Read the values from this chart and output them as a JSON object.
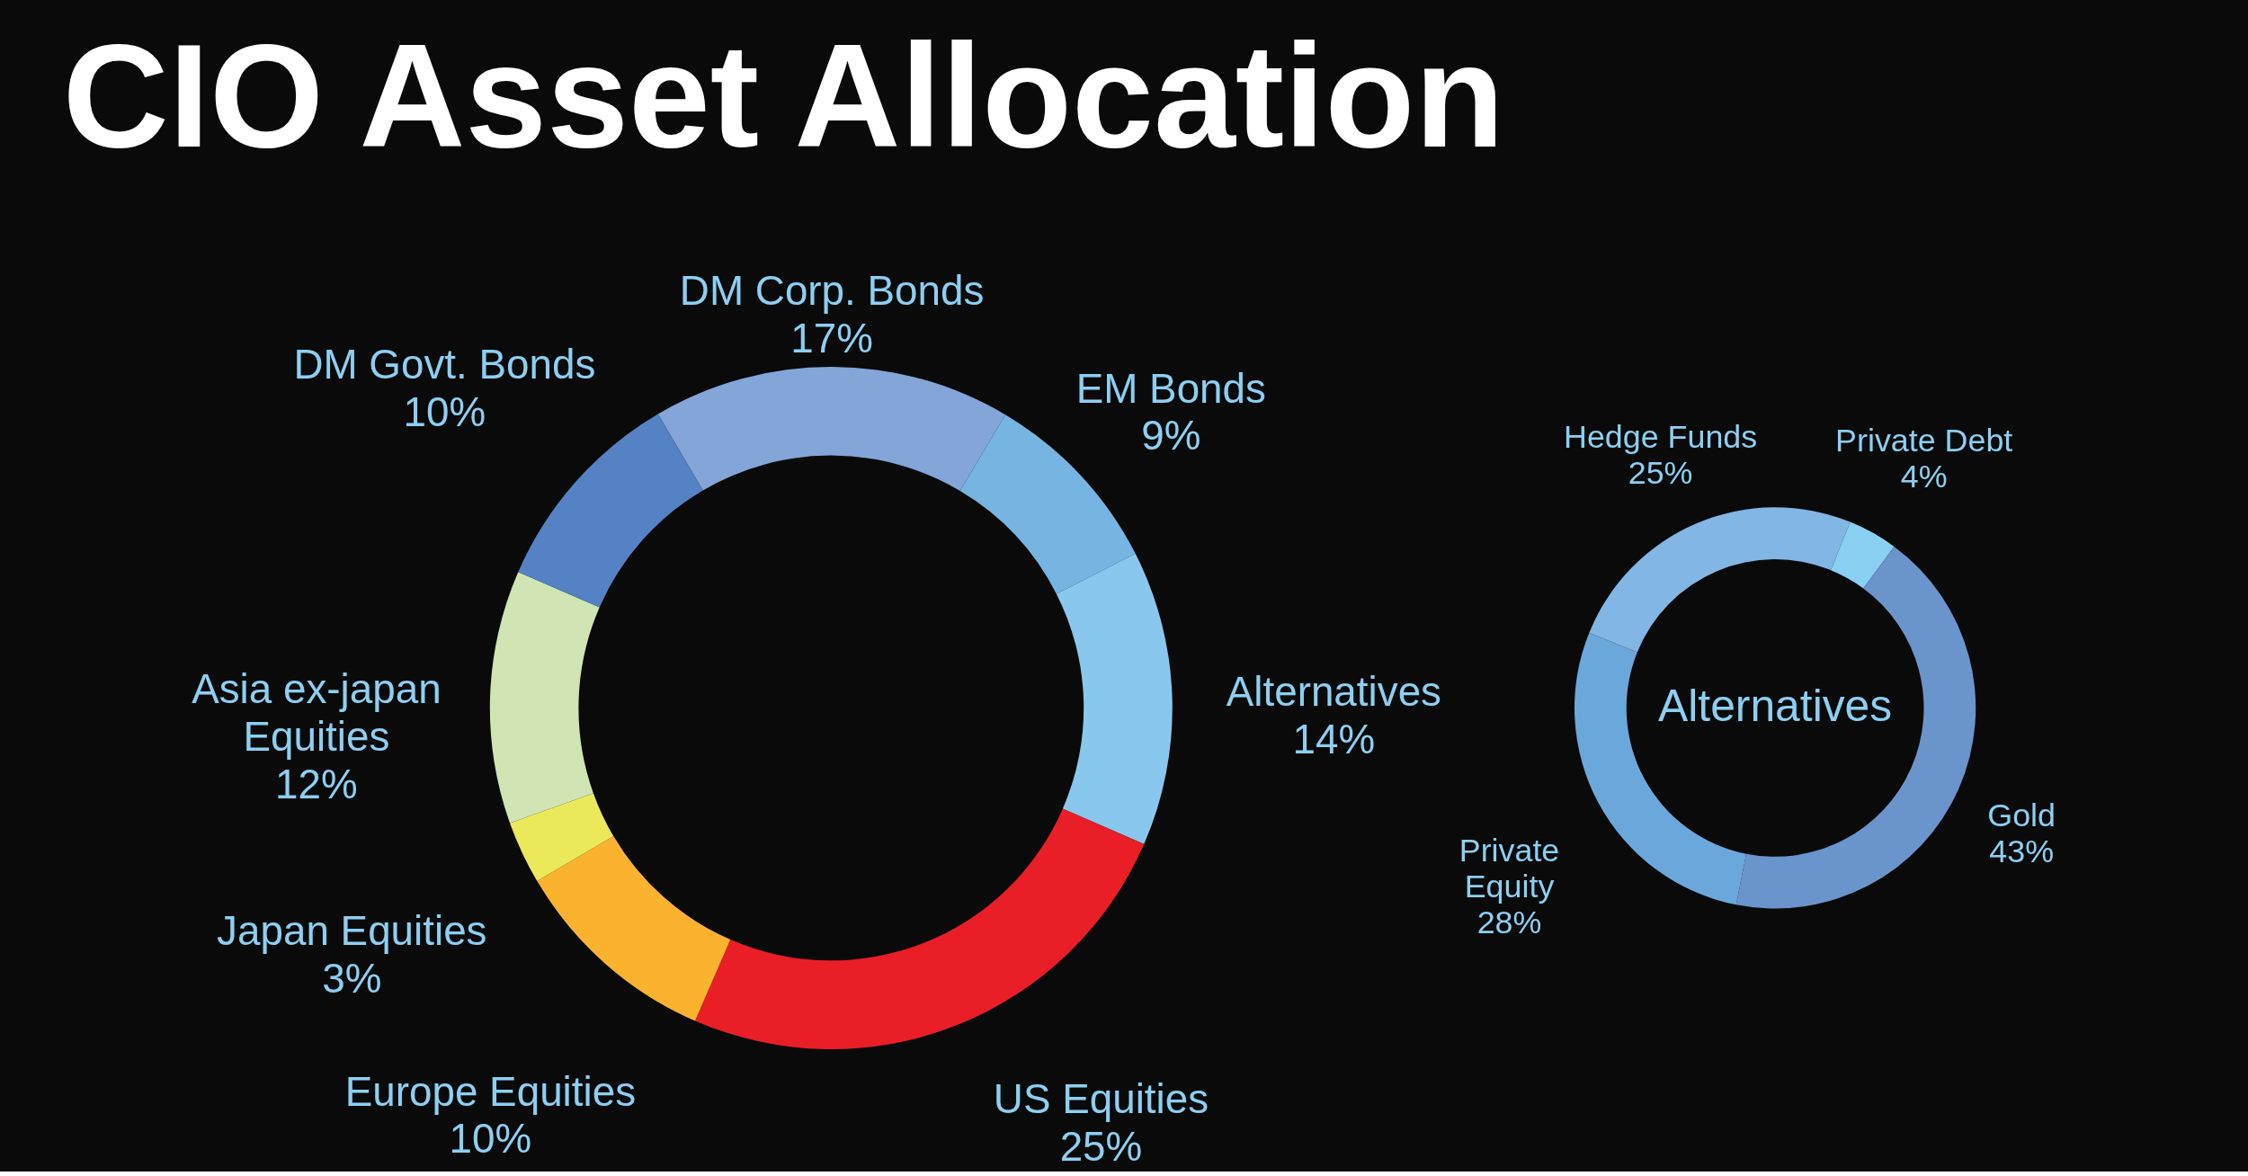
{
  "chart_data": [
    {
      "type": "donut",
      "title": "CIO Asset Allocation",
      "categories": [
        "DM Corp. Bonds",
        "EM Bonds",
        "Alternatives",
        "US Equities",
        "Europe Equities",
        "Japan Equities",
        "Asia ex-japan Equities",
        "DM Govt. Bonds"
      ],
      "values": [
        17,
        9,
        14,
        25,
        10,
        3,
        12,
        10
      ],
      "colors": [
        "#83a5d8",
        "#76b5e2",
        "#89c8ee",
        "#e91e27",
        "#fbb32f",
        "#ebe85a",
        "#d0e5b3",
        "#5582c4"
      ],
      "value_labels": [
        "17%",
        "9%",
        "14%",
        "25%",
        "10%",
        "3%",
        "12%",
        "10%"
      ]
    },
    {
      "type": "donut",
      "title": "Alternatives",
      "categories": [
        "Hedge Funds",
        "Private Debt",
        "Gold",
        "Private Equity"
      ],
      "values": [
        25,
        4,
        43,
        28
      ],
      "colors": [
        "#82b6e4",
        "#8ad0f3",
        "#6a94cc",
        "#6aa8dc"
      ],
      "value_labels": [
        "25%",
        "4%",
        "43%",
        "28%"
      ]
    }
  ]
}
